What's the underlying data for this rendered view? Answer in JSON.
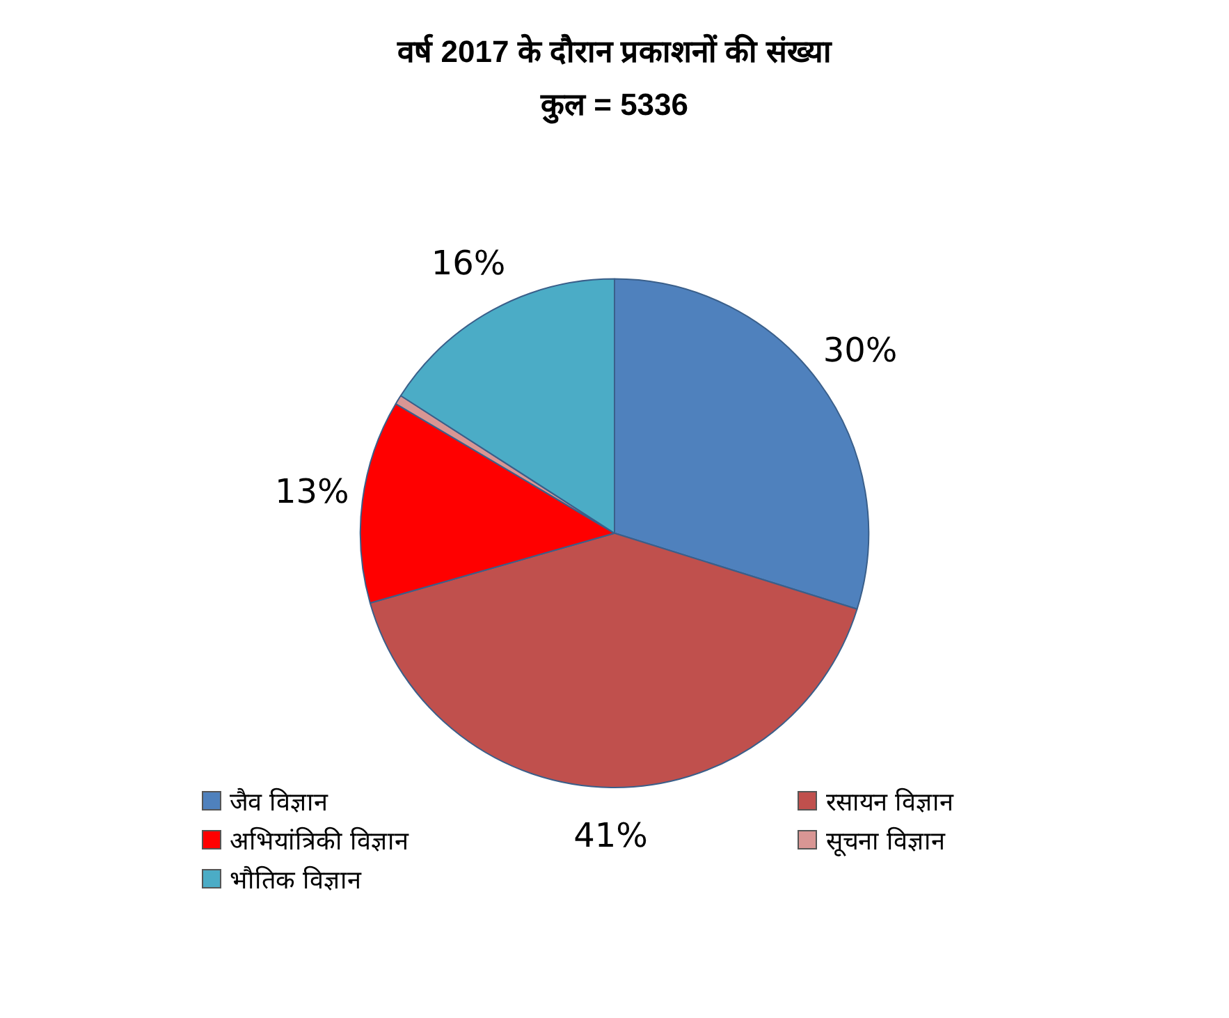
{
  "chart_data": {
    "type": "pie",
    "title": "वर्ष 2017 के दौरान प्रकाशनों की संख्या",
    "subtitle": "कुल = 5336",
    "categories": [
      "जैव विज्ञान",
      "रसायन विज्ञान",
      "अभियांत्रिकी विज्ञान",
      "सूचना विज्ञान",
      "भौतिक विज्ञान"
    ],
    "values": [
      30,
      41,
      13,
      0.6,
      16
    ],
    "value_labels": [
      "30%",
      "41%",
      "13%",
      null,
      "16%"
    ],
    "colors": [
      "#4f81bd",
      "#c0504d",
      "#ff0000",
      "#d99694",
      "#4bacc6"
    ],
    "legend": "bottom"
  }
}
